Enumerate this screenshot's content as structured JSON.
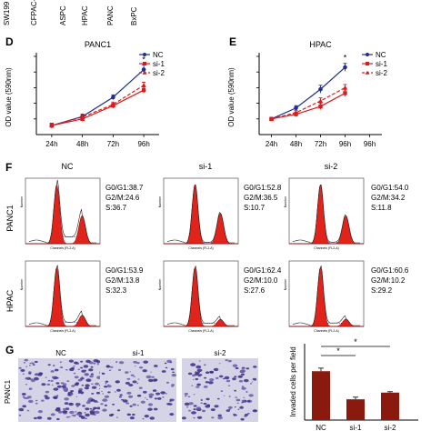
{
  "top_strip": {
    "cell_lines": [
      "SW199",
      "CFPAC-",
      "ASPC",
      "HPAC",
      "PANC",
      "BxPC"
    ]
  },
  "panels": {
    "D": "D",
    "E": "E",
    "F": "F",
    "G": "G"
  },
  "chart_data": [
    {
      "id": "panel-D",
      "type": "line",
      "title": "PANC1",
      "xlabel": "",
      "ylabel": "OD value (590nm)",
      "categories": [
        "24h",
        "48h",
        "72h",
        "96h"
      ],
      "ylim": [
        0,
        1.3
      ],
      "series": [
        {
          "name": "NC",
          "color": "#1f2f8f",
          "dash": false,
          "marker": "circle",
          "values": [
            0.15,
            0.3,
            0.62,
            1.08
          ],
          "err": [
            0.04,
            0.04,
            0.04,
            0.08
          ]
        },
        {
          "name": "si-1",
          "color": "#d81d1d",
          "dash": false,
          "marker": "square",
          "values": [
            0.15,
            0.26,
            0.48,
            0.74
          ],
          "err": [
            0.04,
            0.04,
            0.04,
            0.05
          ]
        },
        {
          "name": "si-2",
          "color": "#d81d1d",
          "dash": true,
          "marker": "triangle",
          "values": [
            0.15,
            0.29,
            0.5,
            0.82
          ],
          "err": [
            0.04,
            0.04,
            0.04,
            0.05
          ]
        }
      ],
      "annotations": [
        "*"
      ]
    },
    {
      "id": "panel-E",
      "type": "line",
      "title": "HPAC",
      "xlabel": "",
      "ylabel": "OD value (590nm)",
      "categories": [
        "24h",
        "48h",
        "72h",
        "96h"
      ],
      "ylim": [
        0,
        1.0
      ],
      "series": [
        {
          "name": "NC",
          "color": "#1f2f8f",
          "dash": false,
          "marker": "circle",
          "values": [
            0.2,
            0.34,
            0.58,
            0.86
          ],
          "err": [
            0.02,
            0.03,
            0.05,
            0.05
          ]
        },
        {
          "name": "si-1",
          "color": "#d81d1d",
          "dash": false,
          "marker": "square",
          "values": [
            0.2,
            0.26,
            0.36,
            0.53
          ],
          "err": [
            0.02,
            0.03,
            0.04,
            0.04
          ]
        },
        {
          "name": "si-2",
          "color": "#d81d1d",
          "dash": true,
          "marker": "triangle",
          "values": [
            0.2,
            0.28,
            0.43,
            0.6
          ],
          "err": [
            0.02,
            0.03,
            0.04,
            0.04
          ]
        }
      ],
      "x_extra_ticks": [
        "96h"
      ],
      "annotations": [
        "*"
      ]
    },
    {
      "id": "panel-F",
      "type": "histogram",
      "title": "",
      "columns": [
        "NC",
        "si-1",
        "si-2"
      ],
      "rows": [
        "PANC1",
        "HPAC"
      ],
      "x_axis_label": "Channels (FL2-A)",
      "y_axis_label": "Number",
      "cells": [
        {
          "row": "PANC1",
          "col": "NC",
          "stats": [
            "G0/G1:38.7",
            "G2/M:24.6",
            "S:36.7"
          ]
        },
        {
          "row": "PANC1",
          "col": "si-1",
          "stats": [
            "G0/G1:52.8",
            "G2/M:36.5",
            "S:10.7"
          ]
        },
        {
          "row": "PANC1",
          "col": "si-2",
          "stats": [
            "G0/G1:54.0",
            "G2/M:34.2",
            "S:11.8"
          ]
        },
        {
          "row": "HPAC",
          "col": "NC",
          "stats": [
            "G0/G1:53.9",
            "G2/M:13.8",
            "S:32.3"
          ]
        },
        {
          "row": "HPAC",
          "col": "si-1",
          "stats": [
            "G0/G1:62.4",
            "G2/M:10.0",
            "S:27.6"
          ]
        },
        {
          "row": "HPAC",
          "col": "si-2",
          "stats": [
            "G0/G1:60.6",
            "G2/M:10.2",
            "S:29.2"
          ]
        }
      ]
    },
    {
      "id": "panel-G",
      "type": "bar",
      "title": "",
      "row_label": "PANC1",
      "image_labels": [
        "NC",
        "si-1",
        "si-2"
      ],
      "categories": [
        "NC",
        "si-1",
        "si-2"
      ],
      "values": [
        160,
        68,
        90
      ],
      "err": [
        10,
        7,
        3
      ],
      "xlabel": "",
      "ylabel": "Invaded cells per field",
      "ylim": [
        0,
        250
      ],
      "significance": [
        "*",
        "*"
      ],
      "bar_color": "#8b1a0e"
    }
  ]
}
